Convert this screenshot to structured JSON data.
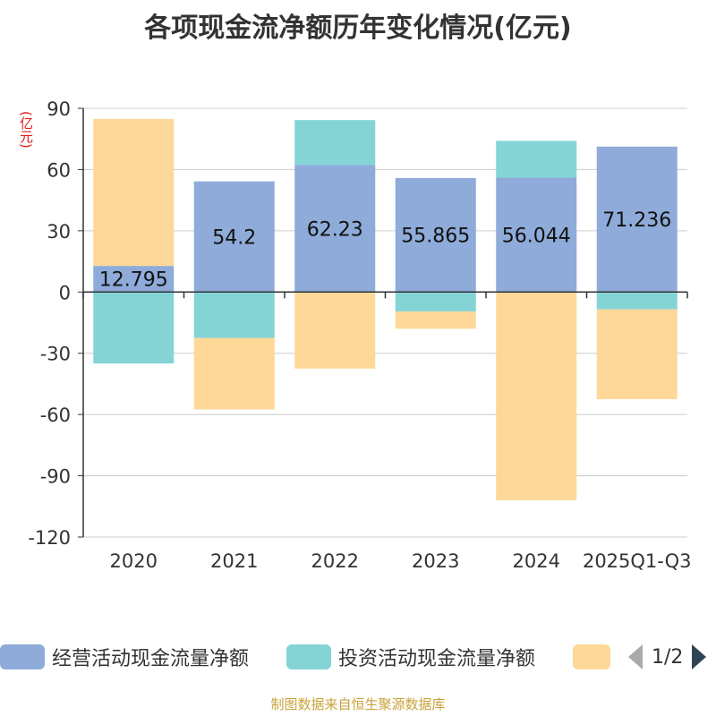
{
  "title": "各项现金流净额历年变化情况(亿元)",
  "unit_label": "(亿元)",
  "footer": "制图数据来自恒生聚源数据库",
  "legend": {
    "page_indicator": "1/2"
  },
  "colors": {
    "operating": "#8eabd9",
    "investing": "#84d4d6",
    "financing": "#fdd899",
    "grid": "#cccccc",
    "axis": "#333333"
  },
  "chart_data": {
    "type": "bar",
    "stacked": true,
    "title": "各项现金流净额历年变化情况(亿元)",
    "ylabel": "(亿元)",
    "ylim": [
      -120,
      90
    ],
    "yticks": [
      90,
      60,
      30,
      0,
      -30,
      -60,
      -90,
      -120
    ],
    "categories": [
      "2020",
      "2021",
      "2022",
      "2023",
      "2024",
      "2025Q1-Q3"
    ],
    "series": [
      {
        "name": "经营活动现金流量净额",
        "color": "#8eabd9",
        "values": [
          12.795,
          54.2,
          62.23,
          55.865,
          56.044,
          71.236
        ],
        "labels": [
          "12.795",
          "54.2",
          "62.23",
          "55.865",
          "56.044",
          "71.236"
        ],
        "show_labels": true
      },
      {
        "name": "投资活动现金流量净额",
        "color": "#84d4d6",
        "values": [
          -35,
          -22.5,
          22,
          -9.5,
          18,
          -8.5
        ],
        "show_labels": false
      },
      {
        "name": "",
        "color": "#fdd899",
        "values": [
          72,
          -35,
          -37.5,
          -8.5,
          -102,
          -44
        ],
        "show_labels": false
      }
    ]
  }
}
